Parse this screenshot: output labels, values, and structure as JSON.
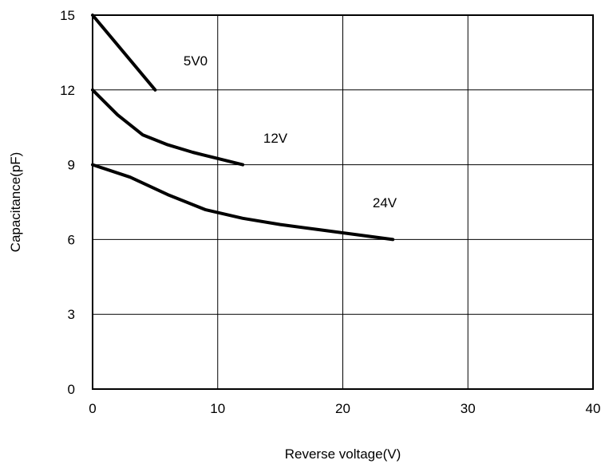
{
  "chart_data": {
    "type": "line",
    "title": "",
    "xlabel": "Reverse voltage(V)",
    "ylabel": "Capacitance(pF)",
    "xlim": [
      0,
      40
    ],
    "ylim": [
      0,
      15
    ],
    "xticks": [
      "0",
      "10",
      "20",
      "30",
      "40"
    ],
    "yticks": [
      "0",
      "3",
      "6",
      "9",
      "12",
      "15"
    ],
    "grid": true,
    "legend": "none",
    "line_color": "#000000",
    "series": [
      {
        "name": "5V0",
        "x": [
          0,
          5
        ],
        "y": [
          15,
          12
        ]
      },
      {
        "name": "12V",
        "x": [
          0,
          2,
          4,
          6,
          8,
          10,
          12
        ],
        "y": [
          12,
          11,
          10.2,
          9.8,
          9.5,
          9.25,
          9
        ]
      },
      {
        "name": "24V",
        "x": [
          0,
          3,
          6,
          9,
          12,
          15,
          18,
          21,
          24
        ],
        "y": [
          9,
          8.5,
          7.8,
          7.2,
          6.85,
          6.6,
          6.4,
          6.2,
          6
        ]
      }
    ]
  }
}
